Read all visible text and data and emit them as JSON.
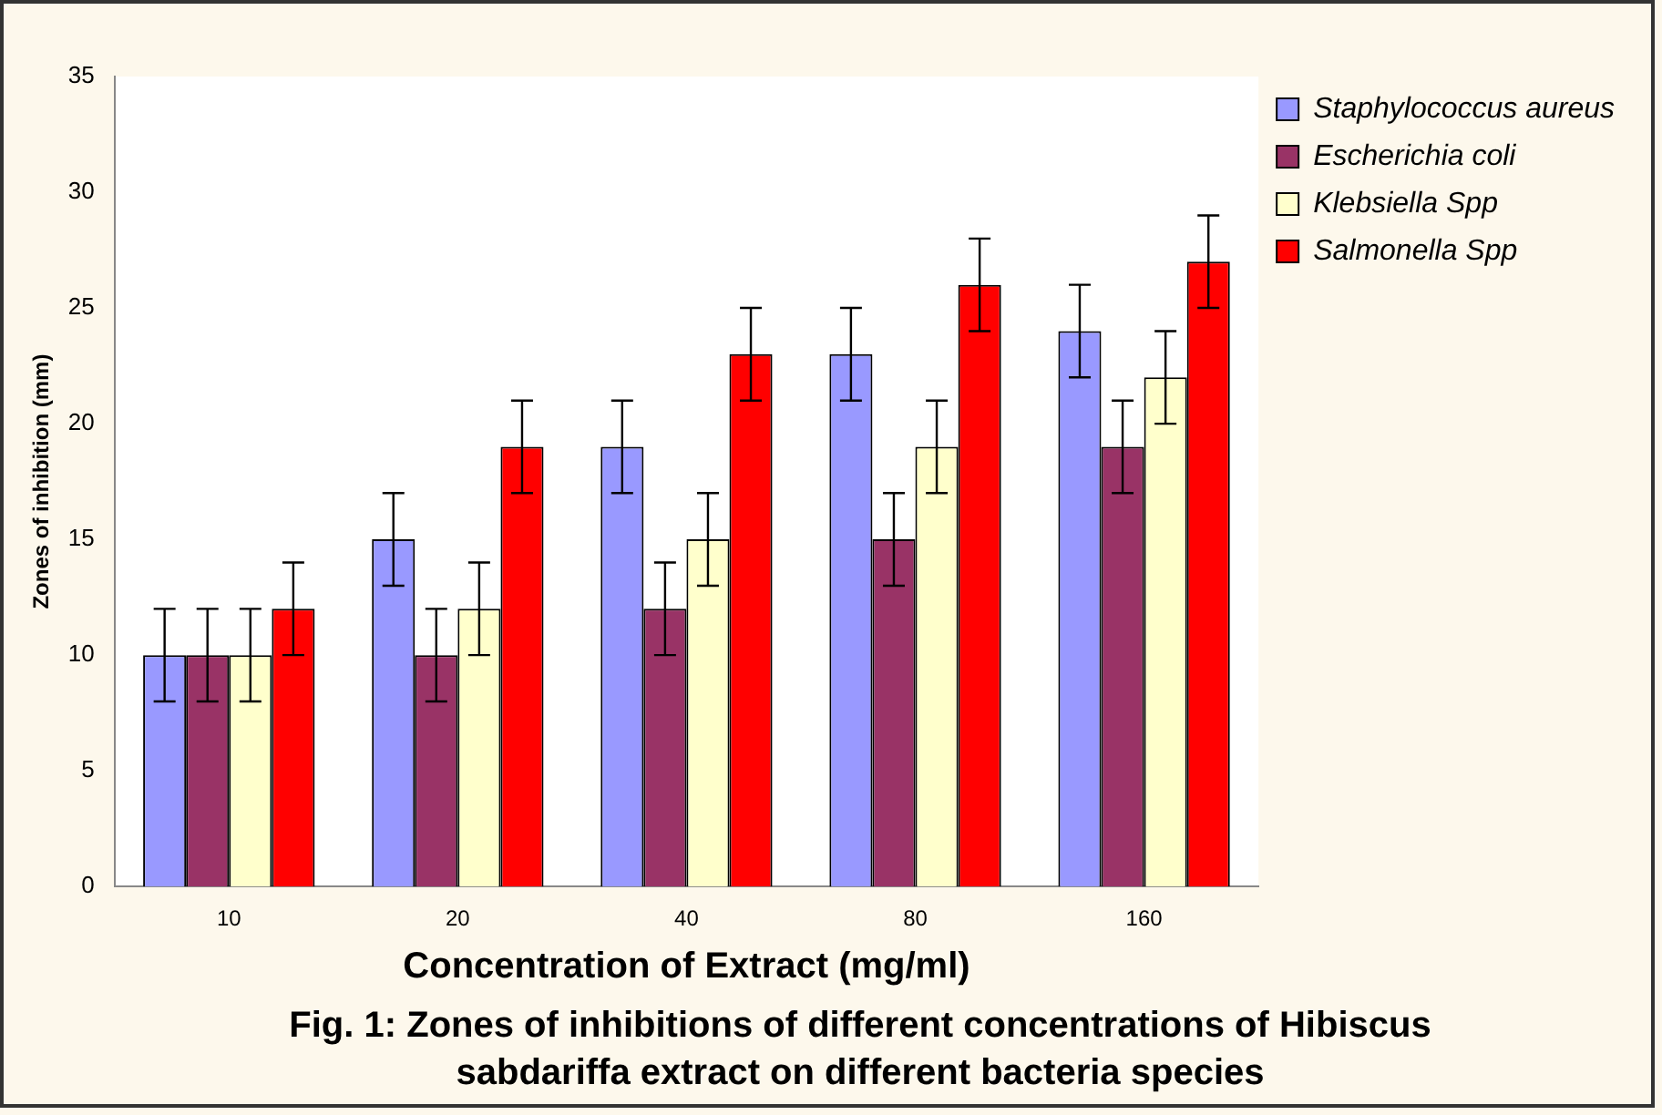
{
  "chart_data": {
    "type": "bar",
    "xlabel": "Concentration of Extract (mg/ml)",
    "ylabel": "Zones of inhibition (mm)",
    "categories": [
      "10",
      "20",
      "40",
      "80",
      "160"
    ],
    "series": [
      {
        "name": "Staphylococcus aureus",
        "color": "#9999ff",
        "values": [
          10,
          15,
          19,
          23,
          24
        ],
        "errors": [
          2,
          2,
          2,
          2,
          2
        ]
      },
      {
        "name": "Escherichia coli",
        "color": "#993366",
        "values": [
          10,
          10,
          12,
          15,
          19
        ],
        "errors": [
          2,
          2,
          2,
          2,
          2
        ]
      },
      {
        "name": "Klebsiella Spp",
        "color": "#ffffcc",
        "values": [
          10,
          12,
          15,
          19,
          22
        ],
        "errors": [
          2,
          2,
          2,
          2,
          2
        ]
      },
      {
        "name": "Salmonella Spp",
        "color": "#ff0000",
        "values": [
          12,
          19,
          23,
          26,
          27
        ],
        "errors": [
          2,
          2,
          2,
          2,
          2
        ]
      }
    ],
    "ylim": [
      0,
      35
    ],
    "yticks": [
      0,
      5,
      10,
      15,
      20,
      25,
      30,
      35
    ],
    "grid": false,
    "legend": "top right",
    "annotations": [
      "Fig. 1:  Zones of inhibitions of different concentrations of Hibiscus sabdariffa extract on different bacteria species"
    ]
  }
}
